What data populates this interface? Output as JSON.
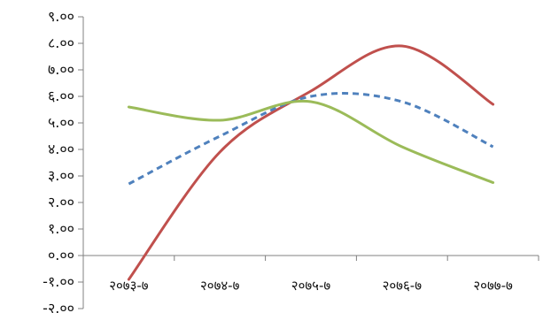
{
  "chart_data": {
    "type": "line",
    "smooth": true,
    "title": "",
    "xlabel": "",
    "ylabel": "",
    "categories": [
      "२०७३-७",
      "२०७४-७",
      "२०७५-७",
      "२०७६-७",
      "२०७७-७"
    ],
    "ylim": [
      -2,
      9
    ],
    "y_tick_values": [
      -2,
      -1,
      0,
      1,
      2,
      3,
      4,
      5,
      6,
      7,
      8,
      9
    ],
    "y_tick_labels": [
      "-२.००",
      "-१.००",
      "०.००",
      "१.००",
      "२.००",
      "३.००",
      "४.००",
      "५.००",
      "६.००",
      "७.००",
      "८.००",
      "९.००"
    ],
    "x_axis_at": 0,
    "grid": false,
    "legend": "none",
    "series": [
      {
        "color": "#c0504d",
        "dash": "solid",
        "values": [
          -0.9,
          3.9,
          6.2,
          7.9,
          5.7
        ]
      },
      {
        "color": "#4f81bd",
        "dash": "dashed",
        "values": [
          2.7,
          4.5,
          6.0,
          5.8,
          4.1
        ]
      },
      {
        "color": "#9bbb59",
        "dash": "solid",
        "values": [
          5.6,
          5.1,
          5.8,
          4.1,
          2.75
        ]
      }
    ]
  }
}
